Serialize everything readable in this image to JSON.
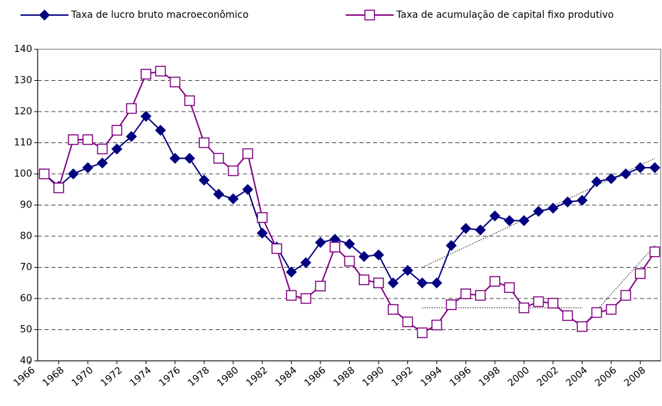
{
  "chart_data": {
    "type": "line",
    "x": [
      1967,
      1968,
      1969,
      1970,
      1971,
      1972,
      1973,
      1974,
      1975,
      1976,
      1977,
      1978,
      1979,
      1980,
      1981,
      1982,
      1983,
      1984,
      1985,
      1986,
      1987,
      1988,
      1989,
      1990,
      1991,
      1992,
      1993,
      1994,
      1995,
      1996,
      1997,
      1998,
      1999,
      2000,
      2001,
      2002,
      2003,
      2004,
      2005,
      2006,
      2007,
      2008,
      2009
    ],
    "series": [
      {
        "name": "Taxa de lucro bruto macroeconômico",
        "color": "#000080",
        "marker": "diamond",
        "values": [
          100,
          96,
          100,
          102,
          103.5,
          108,
          112,
          118.5,
          114,
          105,
          105,
          98,
          93.5,
          92,
          95,
          81,
          76.5,
          68.5,
          71.5,
          78,
          79,
          77.5,
          73.5,
          74,
          65,
          69,
          65,
          65,
          77,
          82.5,
          82,
          86.5,
          85,
          85,
          88,
          89,
          91,
          91.5,
          97.5,
          98.5,
          100,
          102,
          102
        ]
      },
      {
        "name": "Taxa de acumulação de capital fixo produtivo",
        "color": "#800080",
        "marker": "square",
        "values": [
          100,
          95.5,
          111,
          111,
          108,
          114,
          121,
          132,
          133,
          129.5,
          123.5,
          110,
          105,
          101,
          106.5,
          86,
          76,
          61,
          60,
          64,
          76.5,
          72,
          66,
          65,
          56.5,
          52.5,
          49,
          51.5,
          58,
          61.5,
          61,
          65.5,
          63.5,
          57,
          59,
          58.5,
          54.5,
          51,
          55.5,
          56.5,
          61,
          68,
          75
        ]
      }
    ],
    "trendlines": [
      {
        "x": [
          1993,
          2009
        ],
        "values": [
          70,
          105
        ]
      },
      {
        "x": [
          1993,
          2004
        ],
        "values": [
          57,
          57
        ]
      },
      {
        "x": [
          2004,
          2009
        ],
        "values": [
          51,
          77
        ]
      }
    ],
    "xlim": [
      1966.55,
      2009.4
    ],
    "xticks": [
      1966,
      1968,
      1970,
      1972,
      1974,
      1976,
      1978,
      1980,
      1982,
      1984,
      1986,
      1988,
      1990,
      1992,
      1994,
      1996,
      1998,
      2000,
      2002,
      2004,
      2006,
      2008
    ],
    "ylim": [
      40,
      140
    ],
    "yticks": [
      40,
      50,
      60,
      70,
      80,
      90,
      100,
      110,
      120,
      130,
      140
    ],
    "grid": true
  }
}
